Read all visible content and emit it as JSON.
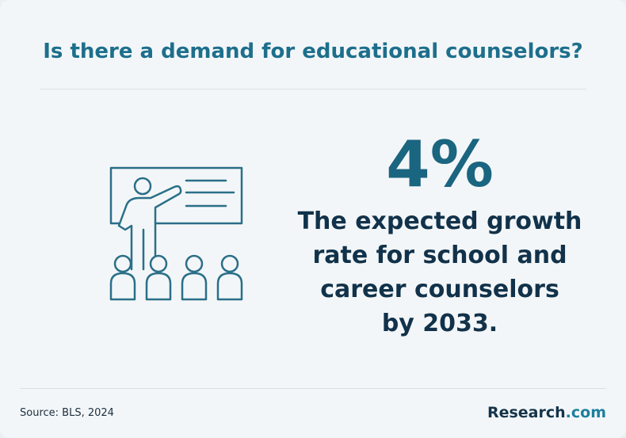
{
  "header": {
    "title": "Is there a demand for educational counselors?"
  },
  "stat": {
    "value": "4%",
    "description_lines": [
      "The expected growth",
      "rate for school and",
      "career counselors",
      "by 2033."
    ]
  },
  "footer": {
    "source": "Source: BLS, 2024",
    "brand": "Research",
    "brand_suffix": ".com"
  }
}
